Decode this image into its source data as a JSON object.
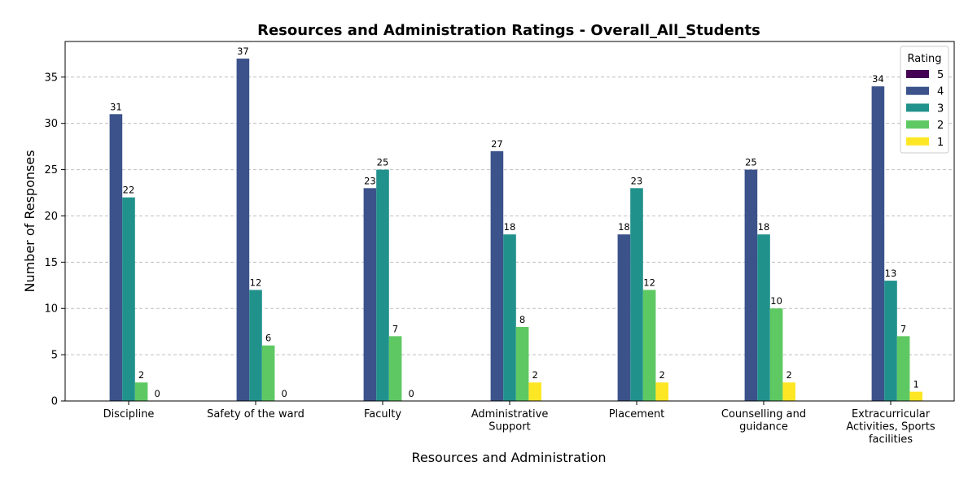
{
  "chart_data": {
    "type": "bar",
    "title": "Resources and Administration Ratings - Overall_All_Students",
    "xlabel": "Resources and Administration",
    "ylabel": "Number of Responses",
    "categories": [
      [
        "Discipline"
      ],
      [
        "Safety of the ward"
      ],
      [
        "Faculty"
      ],
      [
        "Administrative",
        "Support"
      ],
      [
        "Placement"
      ],
      [
        "Counselling and",
        "guidance"
      ],
      [
        "Extracurricular",
        "Activities, Sports",
        "facilities"
      ]
    ],
    "series": [
      {
        "name": "5",
        "color": "#440154",
        "values": [
          0,
          0,
          0,
          0,
          0,
          0,
          0
        ]
      },
      {
        "name": "4",
        "color": "#3b528b",
        "values": [
          31,
          37,
          23,
          27,
          18,
          25,
          34
        ]
      },
      {
        "name": "3",
        "color": "#21918c",
        "values": [
          22,
          12,
          25,
          18,
          23,
          18,
          13
        ]
      },
      {
        "name": "2",
        "color": "#5ec962",
        "values": [
          2,
          6,
          7,
          8,
          12,
          10,
          7
        ]
      },
      {
        "name": "1",
        "color": "#fde725",
        "values": [
          0,
          0,
          0,
          2,
          2,
          2,
          1
        ]
      }
    ],
    "ylim": [
      0,
      38.85
    ],
    "yticks": [
      0,
      5,
      10,
      15,
      20,
      25,
      30,
      35
    ],
    "grid": true,
    "legend": {
      "title": "Rating",
      "placement": "top-right"
    }
  }
}
